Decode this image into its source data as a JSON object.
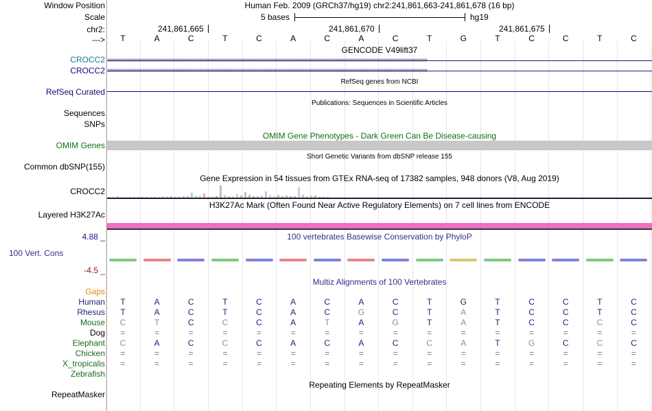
{
  "position": {
    "label": "Window Position",
    "text": "Human Feb. 2009 (GRCh37/hg19)   chr2:241,861,663-241,861,678 (16 bp)"
  },
  "scale": {
    "label": "Scale",
    "value": "5 bases",
    "db": "hg19"
  },
  "chrom": {
    "label": "chr2:",
    "ticks": [
      "241,861,665",
      "241,861,670",
      "241,861,675"
    ]
  },
  "strand_label": "--->",
  "reference_bases": [
    "T",
    "A",
    "C",
    "T",
    "C",
    "A",
    "C",
    "A",
    "C",
    "T",
    "G",
    "T",
    "C",
    "C",
    "T",
    "C"
  ],
  "gencode": {
    "title": "GENCODE V49lift37",
    "gene1": "CROCC2",
    "gene2": "CROCC2"
  },
  "refseq": {
    "label": "RefSeq Curated",
    "title": "RefSeq genes from NCBI"
  },
  "publications": {
    "title": "Publications: Sequences in Scientific Articles",
    "label1": "Sequences",
    "label2": "SNPs"
  },
  "omim": {
    "title": "OMIM Gene Phenotypes - Dark Green Can Be Disease-causing",
    "label": "OMIM Genes"
  },
  "dbsnp": {
    "title": "Short Genetic Variants from dbSNP release 155",
    "label": "Common dbSNP(155)"
  },
  "gtex": {
    "title": "Gene Expression in 54 tissues from GTEx RNA-seq of 17382 samples, 948 donors (V8, Aug 2019)",
    "label": "CROCC2"
  },
  "h3k27ac": {
    "title": "H3K27Ac Mark (Often Found Near Active Regulatory Elements) on 7 cell lines from ENCODE",
    "label": "Layered H3K27Ac"
  },
  "conservation": {
    "title": "100 vertebrates Basewise Conservation by PhyloP",
    "label": "100 Vert. Cons",
    "max": "4.88 _",
    "min": "-4.5 _"
  },
  "multiz": {
    "title": "Multiz Alignments of 100 Vertebrates",
    "gaps_label": "Gaps",
    "species": [
      {
        "name": "Human",
        "bases": [
          "T",
          "A",
          "C",
          "T",
          "C",
          "A",
          "C",
          "A",
          "C",
          "T",
          "G",
          "T",
          "C",
          "C",
          "T",
          "C"
        ]
      },
      {
        "name": "Rhesus",
        "bases": [
          "T",
          "A",
          "C",
          "T",
          "C",
          "A",
          "C",
          "G",
          "C",
          "T",
          "A",
          "T",
          "C",
          "C",
          "T",
          "C"
        ]
      },
      {
        "name": "Mouse",
        "bases": [
          "C",
          "T",
          "C",
          "C",
          "C",
          "A",
          "T",
          "A",
          "G",
          "T",
          "A",
          "T",
          "C",
          "C",
          "C",
          "C"
        ]
      },
      {
        "name": "Dog",
        "bases": [
          "=",
          "=",
          "=",
          "=",
          "=",
          "=",
          "=",
          "=",
          "=",
          "=",
          "=",
          "=",
          "=",
          "=",
          "=",
          "="
        ]
      },
      {
        "name": "Elephant",
        "bases": [
          "C",
          "A",
          "C",
          "C",
          "C",
          "A",
          "C",
          "A",
          "C",
          "C",
          "A",
          "T",
          "G",
          "C",
          "C",
          "C"
        ]
      },
      {
        "name": "Chicken",
        "bases": [
          "=",
          "=",
          "=",
          "=",
          "=",
          "=",
          "=",
          "=",
          "=",
          "=",
          "=",
          "=",
          "=",
          "=",
          "=",
          "="
        ]
      },
      {
        "name": "X_tropicalis",
        "bases": [
          "=",
          "=",
          "=",
          "=",
          "=",
          "=",
          "=",
          "=",
          "=",
          "=",
          "=",
          "=",
          "=",
          "=",
          "=",
          "="
        ]
      },
      {
        "name": "Zebrafish",
        "bases": []
      }
    ]
  },
  "repeatmasker": {
    "title": "Repeating Elements by RepeatMasker",
    "label": "RepeatMasker"
  },
  "gtex_values": [
    0.05,
    0.05,
    0.1,
    0.05,
    0.05,
    0.05,
    0.05,
    0.05,
    0.05,
    0.05,
    0.05,
    0.05,
    0.05,
    0.1,
    0.05,
    0.1,
    0.05,
    0.05,
    0.1,
    0.15,
    0.35,
    0.15,
    0.15,
    0.3,
    0.05,
    0.05,
    0.1,
    0.9,
    0.2,
    0.1,
    0.1,
    0.25,
    0.15,
    0.4,
    0.2,
    0.1,
    0.1,
    0.15,
    0.45,
    0.2,
    0.1,
    0.2,
    0.1,
    0.15,
    0.1,
    0.1,
    0.75,
    0.2,
    0.1,
    0.15,
    0.15,
    0.05,
    0.05,
    0.05
  ],
  "colors": {
    "gencode_label": "#0b7d9c",
    "refseq": "#0c0c78",
    "omim_green": "#0f6e0f",
    "omim_bar": "#c8c8c8",
    "gtex_bar": "#d4b4b4",
    "h3k27ac": "#ee6fc4",
    "cons": "#2f2f8c",
    "cons_max": "#18188a",
    "cons_min": "#8b1a1a",
    "gaps": "#e08a00",
    "mammal": "#1e1e78",
    "nonmammal": "#1a6a1a"
  }
}
